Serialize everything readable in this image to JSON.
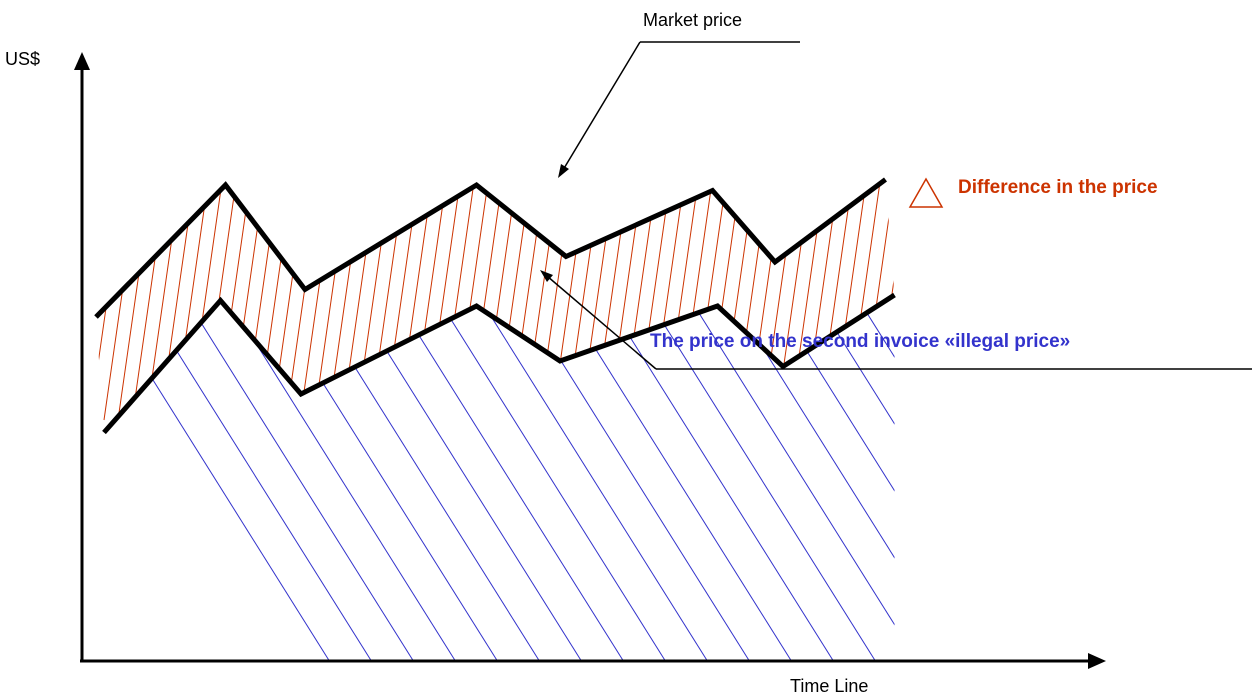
{
  "labels": {
    "y_axis": "US$",
    "x_axis": "Time Line",
    "market_price": "Market price",
    "difference": "Difference in the price",
    "illegal_price": "The price on the second invoice «illegal price»"
  },
  "series": {
    "market_price": [
      [
        0,
        3.2
      ],
      [
        1,
        5.6
      ],
      [
        2,
        3.7
      ],
      [
        3,
        5.6
      ],
      [
        4,
        4.3
      ],
      [
        5,
        5.5
      ],
      [
        6,
        4.2
      ],
      [
        7,
        5.7
      ]
    ],
    "invoice_price": [
      [
        0,
        1.1
      ],
      [
        1,
        3.5
      ],
      [
        2,
        1.8
      ],
      [
        3,
        3.4
      ],
      [
        4,
        2.4
      ],
      [
        5,
        3.4
      ],
      [
        6,
        2.3
      ],
      [
        7,
        3.6
      ]
    ]
  },
  "colors": {
    "axis": "#000000",
    "line": "#000000",
    "difference_hatch": "#cc3300",
    "area_hatch": "#3333cc"
  },
  "icons": {
    "difference_marker": "triangle-outline-icon"
  }
}
